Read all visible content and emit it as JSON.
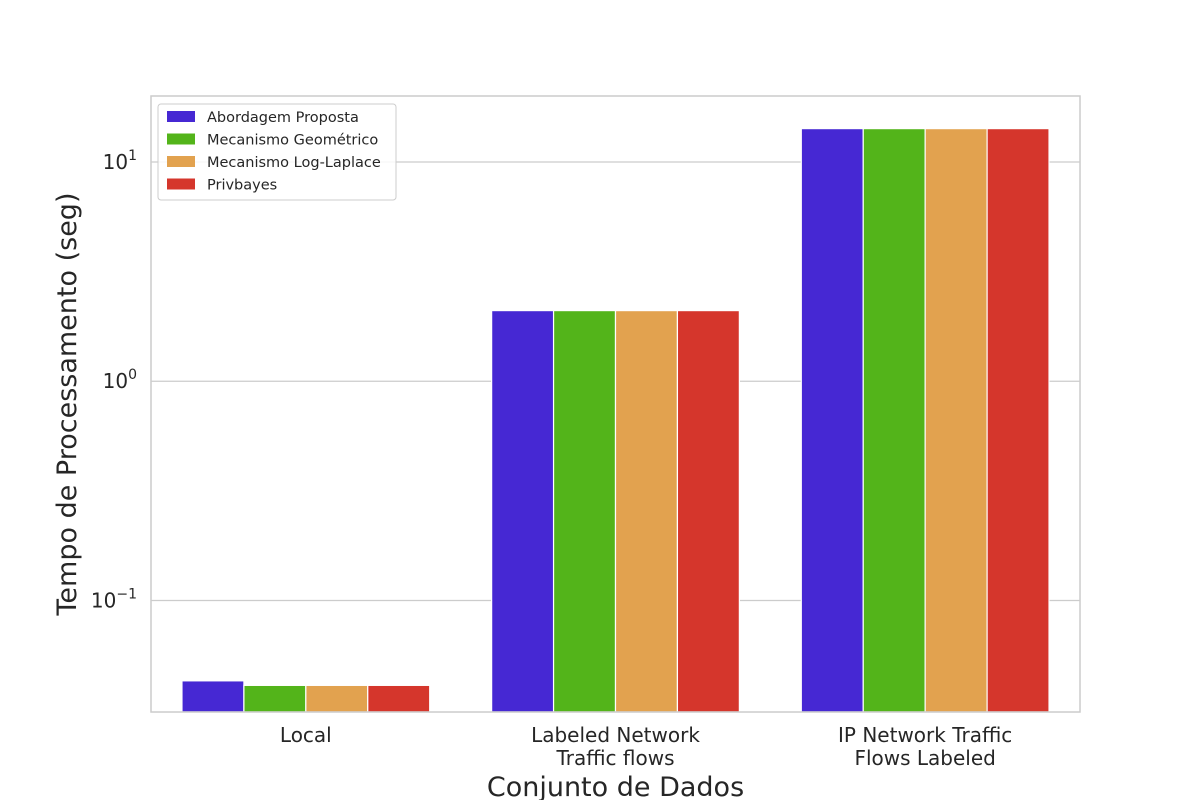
{
  "chart_data": {
    "type": "bar",
    "categories": [
      [
        "Local"
      ],
      [
        "Labeled Network",
        "Traffic flows"
      ],
      [
        "IP Network Traffic",
        "Flows Labeled"
      ]
    ],
    "series": [
      {
        "name": "Abordagem Proposta",
        "color": "#4628d3",
        "values": [
          0.043,
          2.1,
          14.2
        ]
      },
      {
        "name": "Mecanismo Geométrico",
        "color": "#53b41a",
        "values": [
          0.041,
          2.1,
          14.2
        ]
      },
      {
        "name": "Mecanismo Log-Laplace",
        "color": "#e2a24f",
        "values": [
          0.041,
          2.1,
          14.2
        ]
      },
      {
        "name": "Privbayes",
        "color": "#d5362c",
        "values": [
          0.041,
          2.1,
          14.2
        ]
      }
    ],
    "xlabel": "Conjunto de Dados",
    "ylabel": "Tempo de Processamento (seg)",
    "yscale": "log",
    "ylim": [
      0.031,
      20
    ],
    "yticks": [
      {
        "value": 0.1,
        "base": "10",
        "exp": "−1"
      },
      {
        "value": 1,
        "base": "10",
        "exp": "0"
      },
      {
        "value": 10,
        "base": "10",
        "exp": "1"
      }
    ],
    "grid": true,
    "legend_position": "top-left"
  }
}
